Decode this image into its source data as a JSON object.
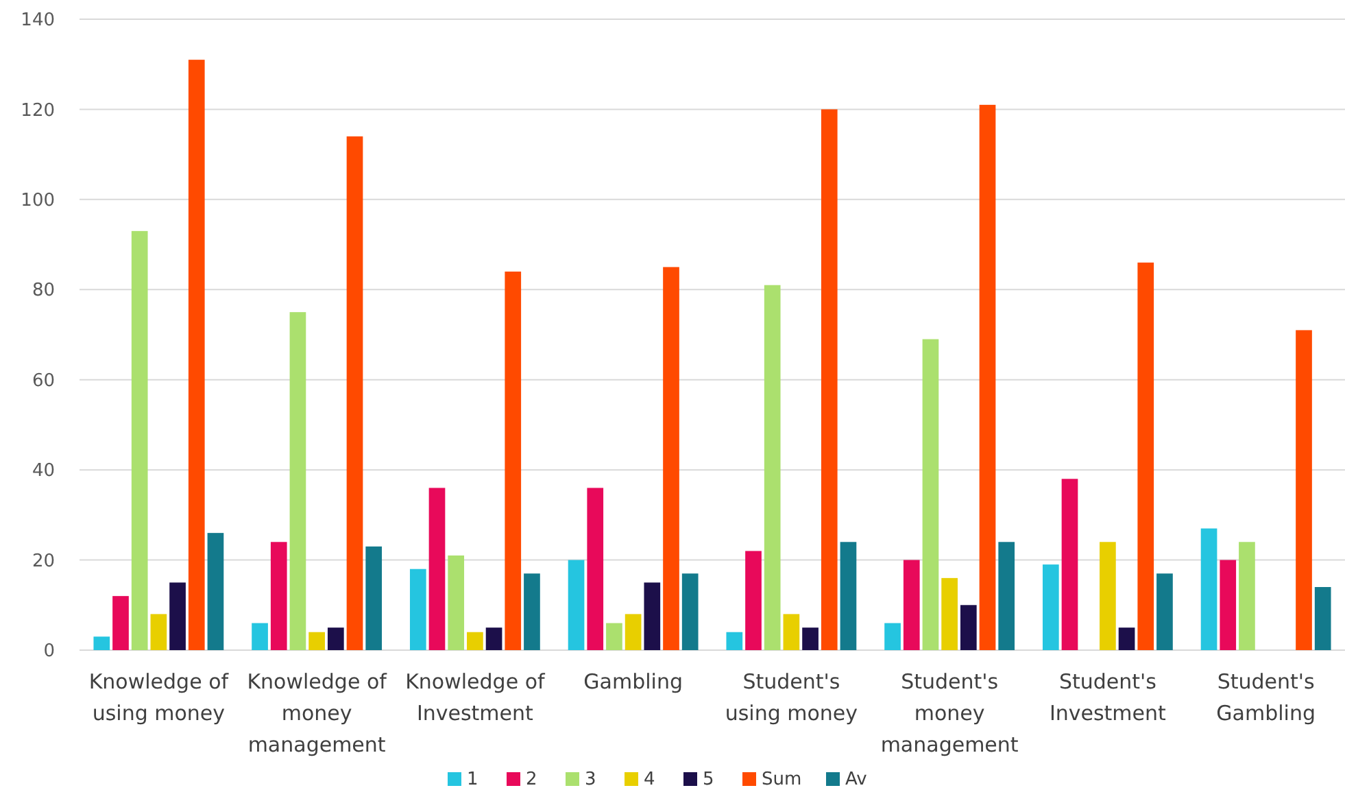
{
  "chart_data": {
    "type": "bar",
    "categories": [
      "Knowledge of using money",
      "Knowledge of money management",
      "Knowledge of Investment",
      "Gambling",
      "Student's using money",
      "Student's money management",
      "Student's Investment",
      "Student's Gambling"
    ],
    "series": [
      {
        "name": "1",
        "color": "#25c5e0",
        "values": [
          3,
          6,
          18,
          20,
          4,
          6,
          19,
          27
        ]
      },
      {
        "name": "2",
        "color": "#e8095a",
        "values": [
          12,
          24,
          36,
          36,
          22,
          20,
          38,
          20
        ]
      },
      {
        "name": "3",
        "color": "#abe06e",
        "values": [
          93,
          75,
          21,
          6,
          81,
          69,
          null,
          24
        ]
      },
      {
        "name": "4",
        "color": "#e8cf00",
        "values": [
          8,
          4,
          4,
          8,
          8,
          16,
          24,
          null
        ]
      },
      {
        "name": "5",
        "color": "#1c0f4a",
        "values": [
          15,
          5,
          5,
          15,
          5,
          10,
          5,
          null
        ]
      },
      {
        "name": "Sum",
        "color": "#ff4a00",
        "values": [
          131,
          114,
          84,
          85,
          120,
          121,
          86,
          71
        ]
      },
      {
        "name": "Av",
        "color": "#137a8c",
        "values": [
          26,
          23,
          17,
          17,
          24,
          24,
          17,
          14
        ]
      }
    ],
    "ylim": [
      0,
      140
    ],
    "yticks": [
      0,
      20,
      40,
      60,
      80,
      100,
      120,
      140
    ],
    "grid": "y",
    "legend": "bottom"
  }
}
